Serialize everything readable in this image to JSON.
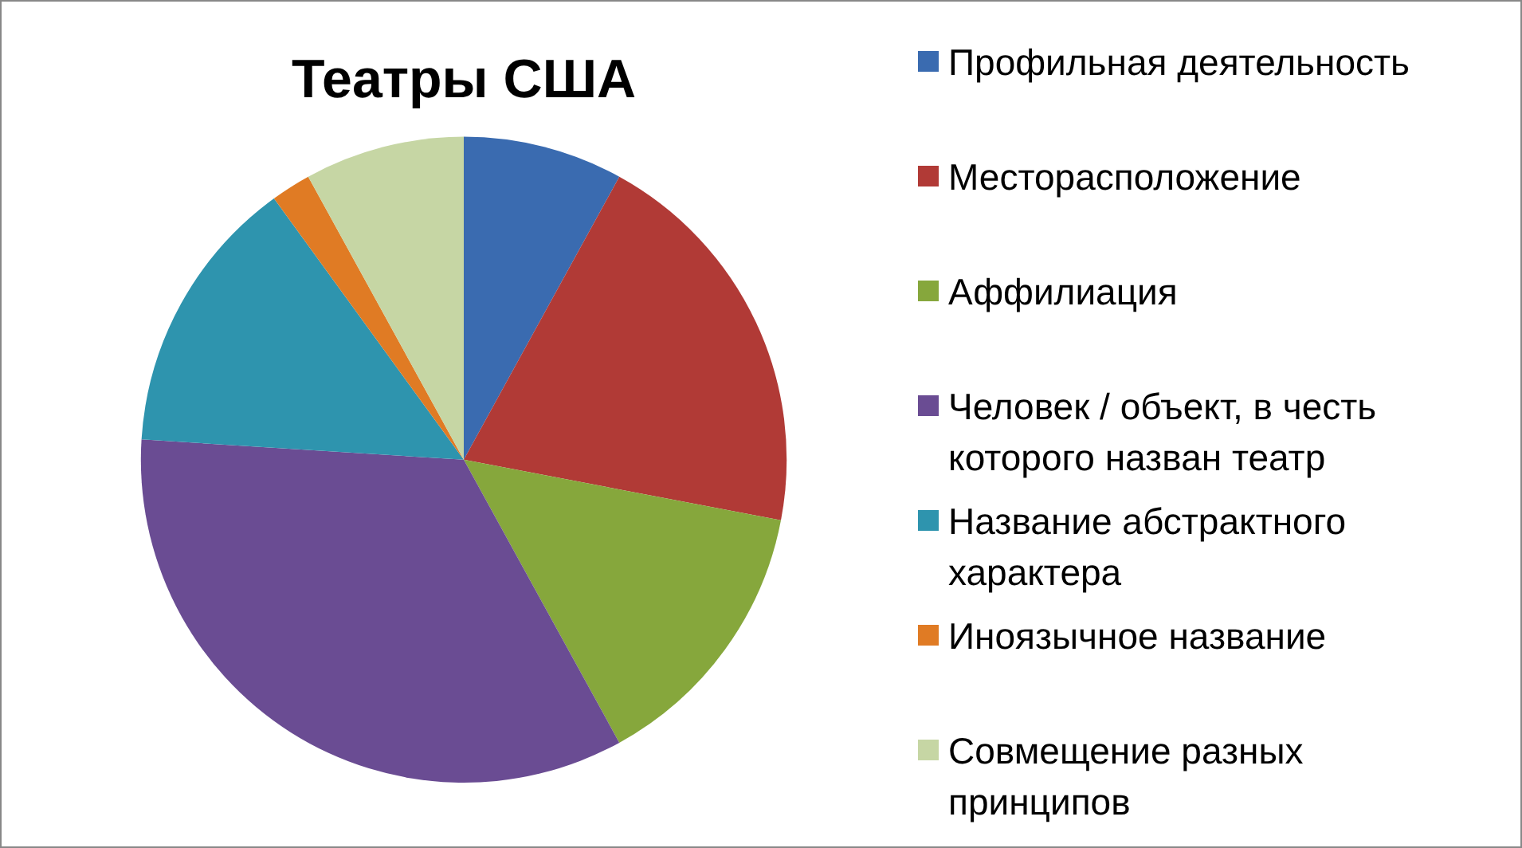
{
  "chart_data": {
    "type": "pie",
    "title": "Театры США",
    "categories": [
      "Профильная деятельность",
      "Месторасположение",
      "Аффилиация",
      "Человек / объект, в честь которого назван театр",
      "Название абстрактного характера",
      "Иноязычное название",
      "Совмещение разных принципов"
    ],
    "values": [
      8,
      20,
      14,
      34,
      14,
      2,
      8
    ],
    "colors": [
      "#3a6bb0",
      "#b13a36",
      "#86a73c",
      "#6a4c93",
      "#2e94ae",
      "#e07b24",
      "#c6d6a4"
    ],
    "legend": "right"
  }
}
